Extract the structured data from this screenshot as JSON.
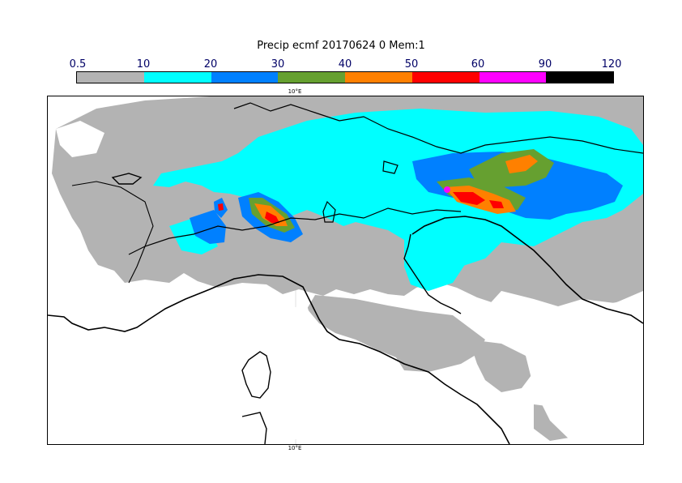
{
  "title": "Precip ecmf 20170624 0 Mem:1",
  "legend": {
    "labels": [
      "0.5",
      "10",
      "20",
      "30",
      "40",
      "50",
      "60",
      "90",
      "120"
    ],
    "colors": [
      "#b3b3b3",
      "#00ffff",
      "#0080ff",
      "#66a030",
      "#ff8000",
      "#ff0000",
      "#ff00ff",
      "#000000"
    ]
  },
  "map": {
    "lon_label_top": "10°E",
    "lon_label_bottom": "10°E"
  }
}
